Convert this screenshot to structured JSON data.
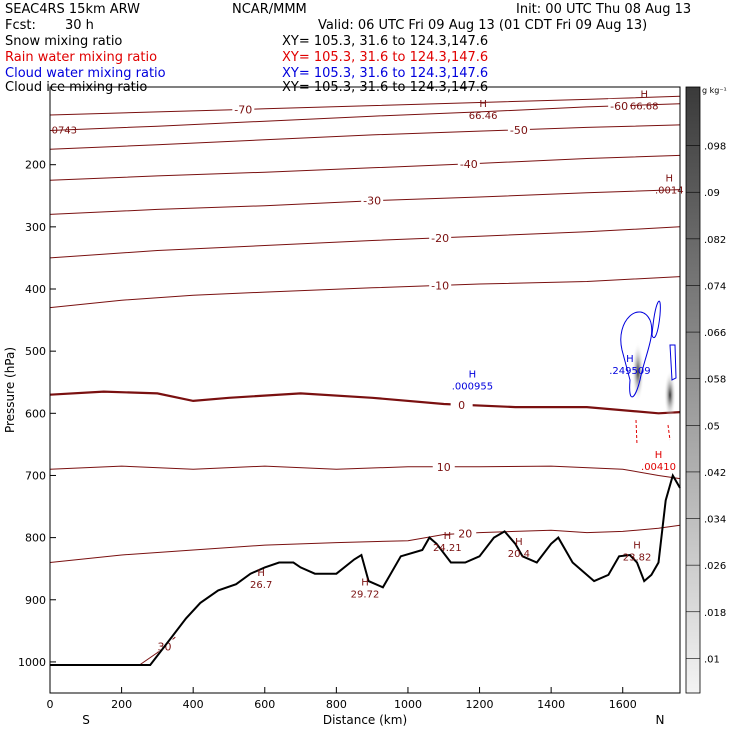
{
  "header": {
    "model": "SEAC4RS 15km ARW",
    "org": "NCAR/MMM",
    "init": "Init: 00 UTC Thu 08 Aug 13",
    "fcst_label": "Fcst:",
    "fcst_value": "30 h",
    "valid": "Valid: 06 UTC Fri 09 Aug 13 (01 CDT Fri 09 Aug 13)"
  },
  "legend": [
    {
      "name": "Snow mixing ratio",
      "xy": "XY= 105.3, 31.6 to 124.3,147.6",
      "color": "#000000"
    },
    {
      "name": "Rain water mixing ratio",
      "xy": "XY= 105.3, 31.6 to 124.3,147.6",
      "color": "#e00000"
    },
    {
      "name": "Cloud water mixing ratio",
      "xy": "XY= 105.3, 31.6 to 124.3,147.6",
      "color": "#0000dd"
    },
    {
      "name": "Cloud ice mixing ratio",
      "xy": "XY= 105.3, 31.6 to 124.3,147.6",
      "color": "#000000"
    }
  ],
  "chart_data": {
    "type": "contour-cross-section",
    "xlabel": "Distance (km)",
    "ylabel": "Pressure (hPa)",
    "xlim": [
      0,
      1760
    ],
    "ylim": [
      1050,
      75
    ],
    "x_ticks": [
      0,
      200,
      400,
      600,
      800,
      1000,
      1200,
      1400,
      1600
    ],
    "y_ticks": [
      200,
      300,
      400,
      500,
      600,
      700,
      800,
      900,
      1000
    ],
    "left_label": "S",
    "right_label": "N",
    "colorbar": {
      "unit": "g kg⁻¹",
      "ticks": [
        ".098",
        ".09",
        ".082",
        ".074",
        ".066",
        ".058",
        ".05",
        ".042",
        ".034",
        ".026",
        ".018",
        ".01"
      ]
    },
    "contour_color": "#7a1010",
    "terrain": [
      [
        0,
        1005
      ],
      [
        280,
        1005
      ],
      [
        340,
        960
      ],
      [
        380,
        930
      ],
      [
        420,
        905
      ],
      [
        470,
        885
      ],
      [
        520,
        875
      ],
      [
        560,
        858
      ],
      [
        600,
        848
      ],
      [
        640,
        840
      ],
      [
        660,
        840
      ],
      [
        680,
        840
      ],
      [
        700,
        848
      ],
      [
        740,
        858
      ],
      [
        800,
        858
      ],
      [
        850,
        835
      ],
      [
        870,
        828
      ],
      [
        890,
        870
      ],
      [
        930,
        880
      ],
      [
        950,
        860
      ],
      [
        980,
        830
      ],
      [
        1040,
        820
      ],
      [
        1060,
        800
      ],
      [
        1080,
        810
      ],
      [
        1120,
        840
      ],
      [
        1160,
        840
      ],
      [
        1200,
        830
      ],
      [
        1240,
        800
      ],
      [
        1270,
        790
      ],
      [
        1300,
        810
      ],
      [
        1320,
        830
      ],
      [
        1360,
        840
      ],
      [
        1400,
        810
      ],
      [
        1420,
        800
      ],
      [
        1460,
        840
      ],
      [
        1500,
        860
      ],
      [
        1520,
        870
      ],
      [
        1560,
        860
      ],
      [
        1590,
        830
      ],
      [
        1620,
        828
      ],
      [
        1640,
        840
      ],
      [
        1660,
        870
      ],
      [
        1680,
        860
      ],
      [
        1700,
        840
      ],
      [
        1720,
        740
      ],
      [
        1740,
        700
      ],
      [
        1760,
        720
      ]
    ],
    "temperature_contours": [
      {
        "label": "-70",
        "label_x": 540,
        "points": [
          [
            0,
            120
          ],
          [
            300,
            115
          ],
          [
            600,
            110
          ],
          [
            900,
            105
          ],
          [
            1200,
            100
          ],
          [
            1500,
            95
          ],
          [
            1760,
            90
          ]
        ]
      },
      {
        "label": "-60",
        "label_x": 1590,
        "points": [
          [
            0,
            145
          ],
          [
            300,
            138
          ],
          [
            600,
            130
          ],
          [
            900,
            122
          ],
          [
            1200,
            115
          ],
          [
            1500,
            107
          ],
          [
            1760,
            102
          ]
        ]
      },
      {
        "label": "-50",
        "label_x": 1310,
        "points": [
          [
            0,
            175
          ],
          [
            300,
            168
          ],
          [
            600,
            160
          ],
          [
            900,
            152
          ],
          [
            1200,
            146
          ],
          [
            1500,
            140
          ],
          [
            1760,
            136
          ]
        ]
      },
      {
        "label": "-40",
        "label_x": 1170,
        "points": [
          [
            0,
            225
          ],
          [
            300,
            218
          ],
          [
            600,
            212
          ],
          [
            900,
            205
          ],
          [
            1200,
            198
          ],
          [
            1500,
            190
          ],
          [
            1760,
            185
          ]
        ]
      },
      {
        "label": "-30",
        "label_x": 900,
        "points": [
          [
            0,
            280
          ],
          [
            300,
            272
          ],
          [
            600,
            266
          ],
          [
            900,
            258
          ],
          [
            1200,
            252
          ],
          [
            1500,
            245
          ],
          [
            1760,
            240
          ]
        ]
      },
      {
        "label": "-20",
        "label_x": 1090,
        "points": [
          [
            0,
            350
          ],
          [
            300,
            338
          ],
          [
            600,
            330
          ],
          [
            900,
            322
          ],
          [
            1200,
            315
          ],
          [
            1500,
            308
          ],
          [
            1760,
            300
          ]
        ]
      },
      {
        "label": "-10",
        "label_x": 1090,
        "points": [
          [
            0,
            430
          ],
          [
            200,
            418
          ],
          [
            400,
            410
          ],
          [
            600,
            405
          ],
          [
            900,
            398
          ],
          [
            1200,
            392
          ],
          [
            1500,
            388
          ],
          [
            1760,
            380
          ]
        ]
      },
      {
        "label": "0",
        "label_x": 1150,
        "points": [
          [
            0,
            570
          ],
          [
            150,
            565
          ],
          [
            300,
            568
          ],
          [
            400,
            580
          ],
          [
            500,
            575
          ],
          [
            700,
            568
          ],
          [
            900,
            575
          ],
          [
            1100,
            585
          ],
          [
            1300,
            590
          ],
          [
            1500,
            590
          ],
          [
            1700,
            600
          ],
          [
            1760,
            598
          ]
        ]
      },
      {
        "label": "10",
        "label_x": 1100,
        "points": [
          [
            0,
            690
          ],
          [
            200,
            685
          ],
          [
            400,
            690
          ],
          [
            600,
            685
          ],
          [
            800,
            690
          ],
          [
            1000,
            686
          ],
          [
            1200,
            686
          ],
          [
            1400,
            685
          ],
          [
            1600,
            690
          ],
          [
            1700,
            700
          ],
          [
            1760,
            705
          ]
        ]
      },
      {
        "label": "20",
        "label_x": 1160,
        "points": [
          [
            0,
            840
          ],
          [
            200,
            828
          ],
          [
            400,
            820
          ],
          [
            600,
            812
          ],
          [
            800,
            808
          ],
          [
            1000,
            805
          ],
          [
            1100,
            795
          ],
          [
            1200,
            792
          ],
          [
            1300,
            790
          ],
          [
            1400,
            788
          ],
          [
            1500,
            792
          ],
          [
            1600,
            790
          ],
          [
            1700,
            785
          ],
          [
            1760,
            780
          ]
        ]
      },
      {
        "label": "30",
        "label_x": 320,
        "points": [
          [
            250,
            1005
          ],
          [
            300,
            985
          ],
          [
            350,
            960
          ]
        ]
      }
    ],
    "max_labels": [
      {
        "text": "H",
        "value": "66.46",
        "x": 1210,
        "p": 120
      },
      {
        "text": "H",
        "value": "66.68",
        "x": 1660,
        "p": 105
      },
      {
        "text": "",
        "value": "0743",
        "x": 40,
        "p": 143
      },
      {
        "text": "H",
        "value": ".0014",
        "x": 1730,
        "p": 240
      },
      {
        "text": "H",
        "value": ".000955",
        "x": 1180,
        "p": 555
      },
      {
        "text": "H",
        "value": ".249509",
        "x": 1620,
        "p": 530
      },
      {
        "text": "H",
        "value": ".00410",
        "x": 1700,
        "p": 685
      },
      {
        "text": "H",
        "value": "26.7",
        "x": 590,
        "p": 875
      },
      {
        "text": "H",
        "value": "29.72",
        "x": 880,
        "p": 890
      },
      {
        "text": "H",
        "value": "24.21",
        "x": 1110,
        "p": 815
      },
      {
        "text": "H",
        "value": "20.4",
        "x": 1310,
        "p": 825
      },
      {
        "text": "H",
        "value": "23.82",
        "x": 1640,
        "p": 830
      }
    ]
  }
}
